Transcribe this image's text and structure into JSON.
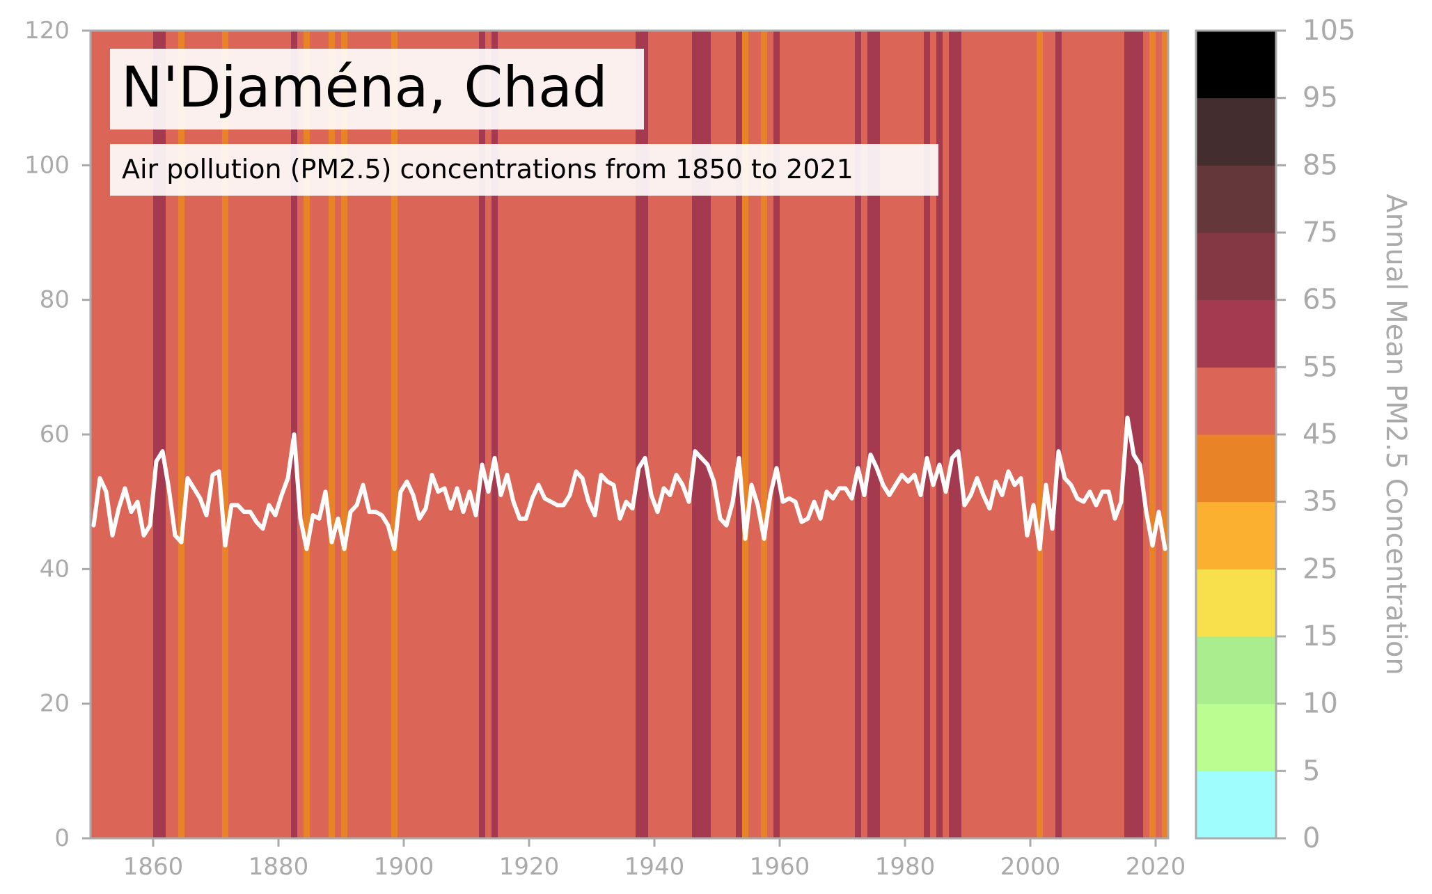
{
  "chart_data": {
    "type": "line",
    "title": "N'Djaména, Chad",
    "subtitle": "Air pollution (PM2.5) concentrations from 1850 to 2021",
    "xlabel": "",
    "ylabel": "",
    "colorbar_label": "Annual Mean PM2.5 Concentration",
    "xlim": [
      1850,
      2022
    ],
    "ylim": [
      0,
      120
    ],
    "x_ticks": [
      1860,
      1880,
      1900,
      1920,
      1940,
      1960,
      1980,
      2000,
      2020
    ],
    "y_ticks": [
      0,
      20,
      40,
      60,
      80,
      100,
      120
    ],
    "grid": false,
    "line_color": "#ffffff",
    "colorbar": {
      "tick_labels": [
        "0",
        "5",
        "10",
        "15",
        "25",
        "35",
        "45",
        "55",
        "65",
        "75",
        "85",
        "95",
        "105"
      ],
      "bins": [
        {
          "from": 0,
          "to": 5,
          "color": "#9ffdfd"
        },
        {
          "from": 5,
          "to": 10,
          "color": "#bbfd90"
        },
        {
          "from": 10,
          "to": 15,
          "color": "#aaed8e"
        },
        {
          "from": 15,
          "to": 25,
          "color": "#f7e04c"
        },
        {
          "from": 25,
          "to": 35,
          "color": "#fbb12f"
        },
        {
          "from": 35,
          "to": 45,
          "color": "#e88427"
        },
        {
          "from": 45,
          "to": 55,
          "color": "#db6658"
        },
        {
          "from": 55,
          "to": 65,
          "color": "#a43a50"
        },
        {
          "from": 65,
          "to": 75,
          "color": "#833843"
        },
        {
          "from": 75,
          "to": 85,
          "color": "#64373a"
        },
        {
          "from": 85,
          "to": 95,
          "color": "#432d2e"
        },
        {
          "from": 95,
          "to": 105,
          "color": "#000000"
        }
      ]
    },
    "series": [
      {
        "x_start": 1850,
        "x_step": 1,
        "values": [
          46.5,
          53.5,
          51.5,
          45.0,
          49.0,
          52.0,
          48.5,
          50.0,
          45.0,
          46.5,
          56.0,
          57.5,
          52.0,
          45.0,
          44.0,
          53.5,
          52.0,
          50.5,
          48.0,
          54.0,
          54.5,
          43.5,
          49.5,
          49.5,
          48.5,
          48.5,
          47.0,
          46.0,
          49.5,
          48.0,
          51.0,
          53.5,
          60.0,
          47.5,
          43.0,
          48.0,
          47.5,
          51.5,
          44.0,
          47.5,
          43.0,
          48.5,
          49.5,
          52.5,
          48.5,
          48.5,
          48.0,
          46.5,
          43.0,
          51.5,
          53.0,
          51.0,
          47.5,
          49.0,
          54.0,
          51.5,
          52.0,
          49.0,
          52.0,
          48.5,
          51.5,
          48.0,
          55.5,
          51.5,
          56.5,
          51.0,
          54.0,
          50.0,
          47.5,
          47.5,
          50.5,
          52.5,
          50.5,
          50.0,
          49.5,
          49.5,
          51.0,
          54.5,
          53.5,
          50.0,
          48.0,
          54.0,
          53.0,
          52.5,
          47.5,
          50.0,
          49.0,
          55.0,
          56.5,
          51.0,
          48.5,
          52.0,
          51.0,
          54.0,
          52.5,
          50.0,
          57.5,
          56.5,
          55.5,
          53.0,
          47.5,
          46.5,
          50.0,
          56.5,
          44.5,
          52.5,
          49.5,
          44.5,
          51.0,
          55.0,
          50.0,
          50.5,
          50.0,
          47.0,
          47.5,
          50.0,
          47.5,
          51.5,
          50.5,
          52.0,
          52.0,
          50.5,
          55.0,
          51.0,
          57.0,
          55.0,
          52.5,
          51.0,
          52.5,
          54.0,
          53.0,
          54.0,
          51.0,
          56.5,
          52.5,
          55.5,
          51.5,
          56.5,
          57.5,
          49.5,
          51.0,
          53.5,
          51.0,
          49.0,
          53.0,
          51.0,
          54.5,
          52.5,
          53.5,
          45.0,
          49.5,
          43.0,
          52.5,
          46.0,
          57.5,
          53.5,
          52.5,
          50.5,
          50.0,
          51.5,
          49.5,
          51.5,
          51.5,
          47.5,
          50.0,
          62.5,
          57.0,
          55.5,
          48.5,
          43.5,
          48.5,
          43.0
        ]
      }
    ]
  }
}
